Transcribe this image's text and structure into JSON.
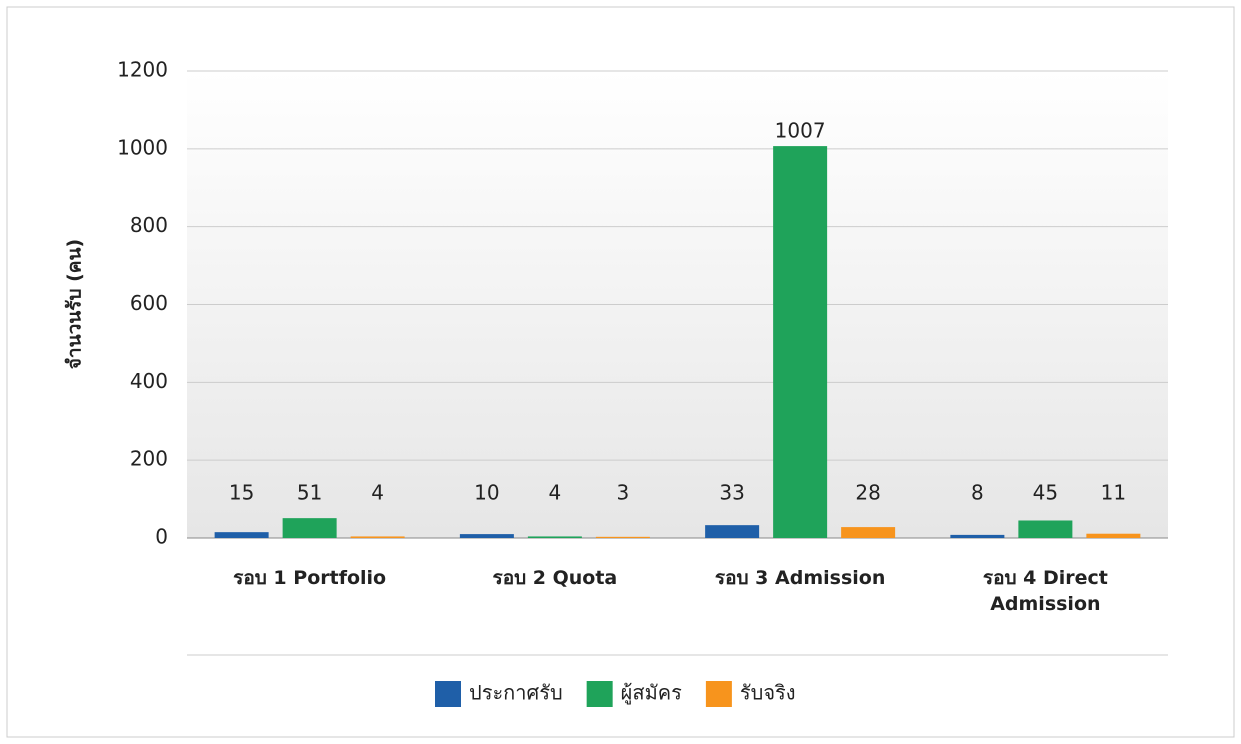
{
  "chart_data": {
    "type": "bar",
    "y_label": "จำนวนรับ (คน)",
    "categories": [
      "รอบ 1 Portfolio",
      "รอบ 2 Quota",
      "รอบ 3 Admission",
      "รอบ 4 Direct Admission"
    ],
    "series": [
      {
        "name": "ประกาศรับ",
        "color": "#1f5fa8",
        "values": [
          15,
          10,
          33,
          8
        ]
      },
      {
        "name": "ผู้สมัคร",
        "color": "#1fa35a",
        "values": [
          51,
          4,
          1007,
          45
        ]
      },
      {
        "name": "รับจริง",
        "color": "#f7941d",
        "values": [
          4,
          3,
          28,
          11
        ]
      }
    ],
    "ylim": [
      0,
      1200
    ],
    "yticks": [
      0,
      200,
      400,
      600,
      800,
      1000,
      1200
    ],
    "grid": true,
    "legend": "bottom"
  }
}
